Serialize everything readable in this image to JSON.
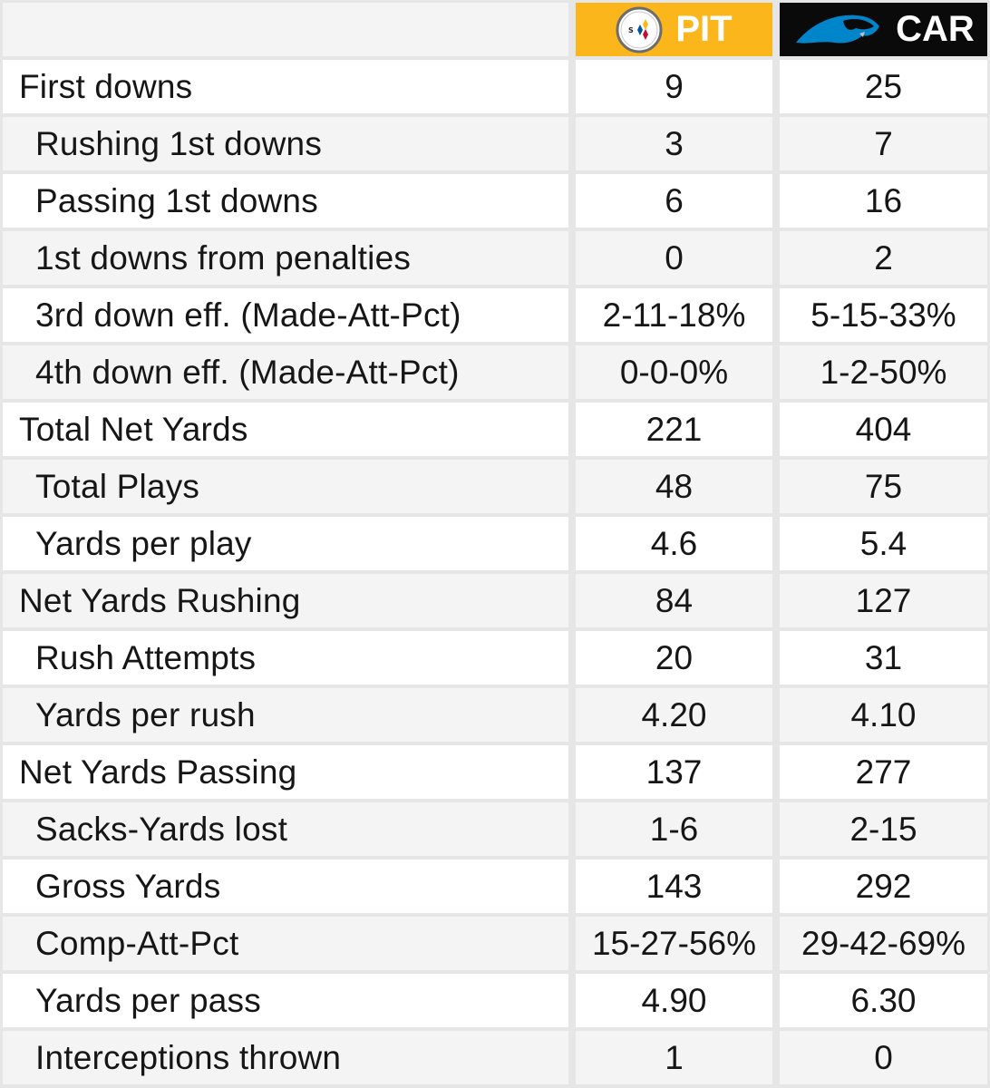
{
  "teams": [
    {
      "abbr": "PIT",
      "logo": "steelers-logo-icon",
      "color": "#fbb61b"
    },
    {
      "abbr": "CAR",
      "logo": "panthers-logo-icon",
      "color": "#0a0a0a"
    }
  ],
  "rows": [
    {
      "label": "First downs",
      "sub": false,
      "pit": "9",
      "car": "25"
    },
    {
      "label": "Rushing 1st downs",
      "sub": true,
      "pit": "3",
      "car": "7"
    },
    {
      "label": "Passing 1st downs",
      "sub": true,
      "pit": "6",
      "car": "16"
    },
    {
      "label": "1st downs from penalties",
      "sub": true,
      "pit": "0",
      "car": "2"
    },
    {
      "label": "3rd down eff. (Made-Att-Pct)",
      "sub": true,
      "pit": "2-11-18%",
      "car": "5-15-33%"
    },
    {
      "label": "4th down eff. (Made-Att-Pct)",
      "sub": true,
      "pit": "0-0-0%",
      "car": "1-2-50%"
    },
    {
      "label": "Total Net Yards",
      "sub": false,
      "pit": "221",
      "car": "404"
    },
    {
      "label": "Total Plays",
      "sub": true,
      "pit": "48",
      "car": "75"
    },
    {
      "label": "Yards per play",
      "sub": true,
      "pit": "4.6",
      "car": "5.4"
    },
    {
      "label": "Net Yards Rushing",
      "sub": false,
      "pit": "84",
      "car": "127"
    },
    {
      "label": "Rush Attempts",
      "sub": true,
      "pit": "20",
      "car": "31"
    },
    {
      "label": "Yards per rush",
      "sub": true,
      "pit": "4.20",
      "car": "4.10"
    },
    {
      "label": "Net Yards Passing",
      "sub": false,
      "pit": "137",
      "car": "277"
    },
    {
      "label": "Sacks-Yards lost",
      "sub": true,
      "pit": "1-6",
      "car": "2-15"
    },
    {
      "label": "Gross Yards",
      "sub": true,
      "pit": "143",
      "car": "292"
    },
    {
      "label": "Comp-Att-Pct",
      "sub": true,
      "pit": "15-27-56%",
      "car": "29-42-69%"
    },
    {
      "label": "Yards per pass",
      "sub": true,
      "pit": "4.90",
      "car": "6.30"
    },
    {
      "label": "Interceptions thrown",
      "sub": true,
      "pit": "1",
      "car": "0"
    }
  ]
}
